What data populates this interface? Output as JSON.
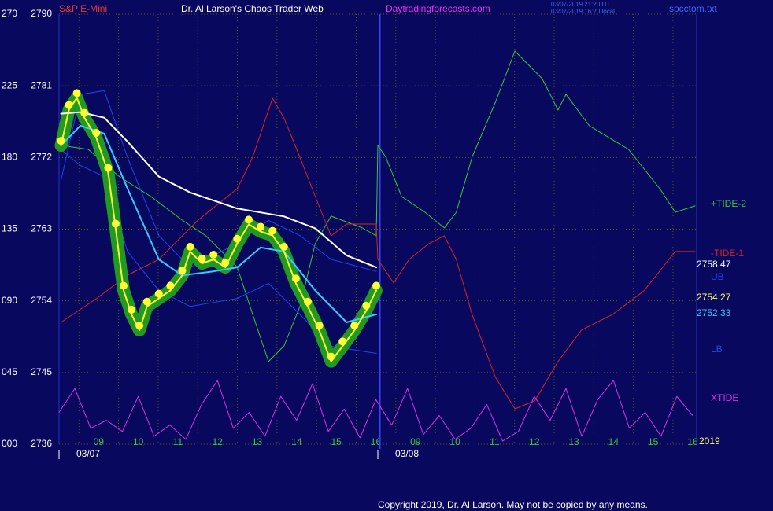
{
  "chart_data": {
    "type": "line",
    "header": {
      "symbol": "S&P E-Mini",
      "title": "Dr. Al Larson's Chaos Trader Web",
      "site": "Daytradingforecasts.com",
      "stamp_ut": "03/07/2019 21:20 UT",
      "stamp_local": "03/07/2019 16:20 local",
      "file": "spcctom.txt"
    },
    "copyright": "Copyright 2019, Dr. Al Larson. May not be copied by any means.",
    "dates": [
      "03/07",
      "03/08"
    ],
    "year": "2019",
    "readouts": [
      "2758.47",
      "2754.27",
      "2752.33"
    ],
    "xlim": [
      0,
      16.1
    ],
    "xticks": [
      {
        "value": 1,
        "label": "09"
      },
      {
        "value": 2,
        "label": "10"
      },
      {
        "value": 3,
        "label": "11"
      },
      {
        "value": 4,
        "label": "12"
      },
      {
        "value": 5,
        "label": "13"
      },
      {
        "value": 6,
        "label": "14"
      },
      {
        "value": 7,
        "label": "15"
      },
      {
        "value": 8,
        "label": "16"
      },
      {
        "value": 9,
        "label": "09"
      },
      {
        "value": 10,
        "label": "10"
      },
      {
        "value": 11,
        "label": "11"
      },
      {
        "value": 12,
        "label": "12"
      },
      {
        "value": 13,
        "label": "13"
      },
      {
        "value": 14,
        "label": "14"
      },
      {
        "value": 15,
        "label": "15"
      },
      {
        "value": 16,
        "label": "16"
      }
    ],
    "ylim": [
      2736,
      2790
    ],
    "yticks": [
      2736,
      2745,
      2754,
      2763,
      2772,
      2781,
      2790
    ],
    "y2lim": [
      0,
      270
    ],
    "y2ticks": [
      {
        "value": 0,
        "label": "000"
      },
      {
        "value": 45,
        "label": "045"
      },
      {
        "value": 90,
        "label": "090"
      },
      {
        "value": 135,
        "label": "135"
      },
      {
        "value": 180,
        "label": "180"
      },
      {
        "value": 225,
        "label": "225"
      },
      {
        "value": 270,
        "label": "270"
      }
    ],
    "grid": true,
    "series": [
      {
        "name": "+TIDE-2",
        "color": "#33cc33",
        "axis": "y2",
        "x": [
          0.05,
          0.74,
          1.53,
          2.32,
          3.11,
          3.71,
          4.5,
          4.89,
          5.29,
          5.68,
          6.08,
          6.47,
          6.87,
          7.66,
          8.01,
          8.05,
          8.25,
          8.65,
          9.24,
          9.73,
          10.03,
          10.43,
          11.02,
          11.51,
          12.2,
          12.6,
          12.8,
          13.39,
          14.38,
          15.17,
          15.56,
          16.06
        ],
        "values": [
          187.6,
          185.1,
          167.8,
          155.5,
          140.7,
          130.8,
          111.1,
          81.5,
          51.9,
          61.7,
          86.4,
          125.9,
          143.2,
          135.8,
          130.8,
          187.6,
          180.2,
          155.5,
          145.6,
          135.8,
          145.6,
          180.2,
          214.7,
          246.8,
          229.5,
          209.8,
          219.7,
          199.9,
          185.1,
          160.4,
          145.6,
          149.6
        ]
      },
      {
        "name": "-TIDE-1",
        "color": "#dd2222",
        "axis": "y2",
        "x": [
          0.05,
          0.94,
          1.73,
          2.52,
          3.51,
          4.5,
          4.89,
          5.39,
          5.68,
          6.08,
          6.47,
          6.87,
          7.26,
          8.01,
          8.05,
          8.45,
          8.84,
          9.34,
          9.73,
          10.03,
          10.43,
          11.02,
          11.51,
          12.01,
          12.6,
          13.19,
          13.98,
          14.77,
          15.56,
          16.06
        ],
        "values": [
          76.5,
          91.3,
          106.1,
          116.0,
          140.7,
          160.4,
          180.2,
          217.2,
          204.8,
          180.2,
          155.5,
          130.8,
          138.2,
          138.2,
          116.0,
          101.2,
          116.0,
          125.9,
          130.8,
          116.0,
          81.5,
          42.0,
          22.2,
          27.2,
          51.9,
          71.6,
          81.5,
          96.3,
          121.0,
          121.0
        ]
      },
      {
        "name": "UB",
        "color": "#2244ee",
        "axis": "y",
        "x": [
          0.05,
          0.54,
          1.14,
          1.73,
          2.52,
          3.31,
          4.5,
          5.29,
          6.08,
          6.87,
          8.01
        ],
        "values": [
          2769.1,
          2779.9,
          2780.4,
          2772.0,
          2762.2,
          2758.2,
          2761.2,
          2764.1,
          2762.2,
          2759.2,
          2757.7
        ]
      },
      {
        "name": "LB",
        "color": "#2244ee",
        "axis": "y",
        "x": [
          0.05,
          0.54,
          1.14,
          1.73,
          2.52,
          3.31,
          4.5,
          5.29,
          6.08,
          6.87,
          8.01
        ],
        "values": [
          2773.0,
          2771.0,
          2769.6,
          2760.2,
          2755.3,
          2753.3,
          2754.3,
          2756.2,
          2752.3,
          2748.3,
          2747.4
        ]
      },
      {
        "name": "XTIDE",
        "color": "#dd33dd",
        "axis": "y2",
        "x": [
          0,
          0.4,
          0.8,
          1.2,
          1.6,
          2,
          2.4,
          2.8,
          3.2,
          3.6,
          4,
          4.4,
          4.8,
          5.2,
          5.6,
          6,
          6.4,
          6.8,
          7.2,
          7.6,
          8,
          8.4,
          8.8,
          9.2,
          9.6,
          10,
          10.4,
          10.8,
          11.2,
          11.6,
          12,
          12.4,
          12.8,
          13.2,
          13.6,
          14,
          14.4,
          14.8,
          15.2,
          15.6,
          16
        ],
        "values": [
          20,
          35,
          10,
          15,
          8,
          30,
          5,
          12,
          3,
          25,
          40,
          10,
          20,
          5,
          30,
          15,
          38,
          8,
          22,
          4,
          28,
          12,
          35,
          6,
          18,
          3,
          10,
          25,
          2,
          8,
          30,
          15,
          35,
          5,
          28,
          40,
          10,
          20,
          5,
          30,
          18
        ]
      }
    ],
    "overlays": [
      {
        "color": "#ffffff",
        "x": [
          0.05,
          0.54,
          1.14,
          1.73,
          2.52,
          3.31,
          4.5,
          5.68,
          6.47,
          7.26,
          8.01
        ],
        "values": [
          2777.5,
          2777.7,
          2777.0,
          2774.0,
          2769.6,
          2767.6,
          2765.6,
          2764.6,
          2763.1,
          2759.7,
          2758.2
        ]
      },
      {
        "color": "#33ccff",
        "x": [
          0.05,
          0.54,
          1.14,
          1.73,
          2.52,
          3.11,
          3.9,
          4.5,
          5.09,
          5.68,
          6.47,
          7.26,
          8.01
        ],
        "values": [
          2773.5,
          2776.0,
          2775.0,
          2768.1,
          2759.2,
          2757.2,
          2757.7,
          2758.2,
          2760.7,
          2760.2,
          2755.3,
          2751.3,
          2752.3
        ]
      }
    ],
    "price": {
      "color": "#ffff33",
      "halo": "#229922",
      "x": [
        0.05,
        0.25,
        0.45,
        0.64,
        0.94,
        1.24,
        1.43,
        1.63,
        1.83,
        2.03,
        2.22,
        2.52,
        2.81,
        3.11,
        3.31,
        3.61,
        3.9,
        4.2,
        4.5,
        4.79,
        5.09,
        5.39,
        5.68,
        5.98,
        6.28,
        6.57,
        6.87,
        7.16,
        7.46,
        7.76,
        8.01
      ],
      "values": [
        2773.5,
        2778.0,
        2779.5,
        2777.0,
        2774.5,
        2770.1,
        2763.1,
        2755.3,
        2752.3,
        2750.3,
        2753.3,
        2754.3,
        2755.3,
        2757.2,
        2760.2,
        2758.7,
        2759.2,
        2758.2,
        2761.2,
        2763.6,
        2762.7,
        2762.2,
        2760.2,
        2756.2,
        2753.3,
        2750.3,
        2746.4,
        2748.3,
        2750.3,
        2752.8,
        2755.3
      ]
    }
  }
}
